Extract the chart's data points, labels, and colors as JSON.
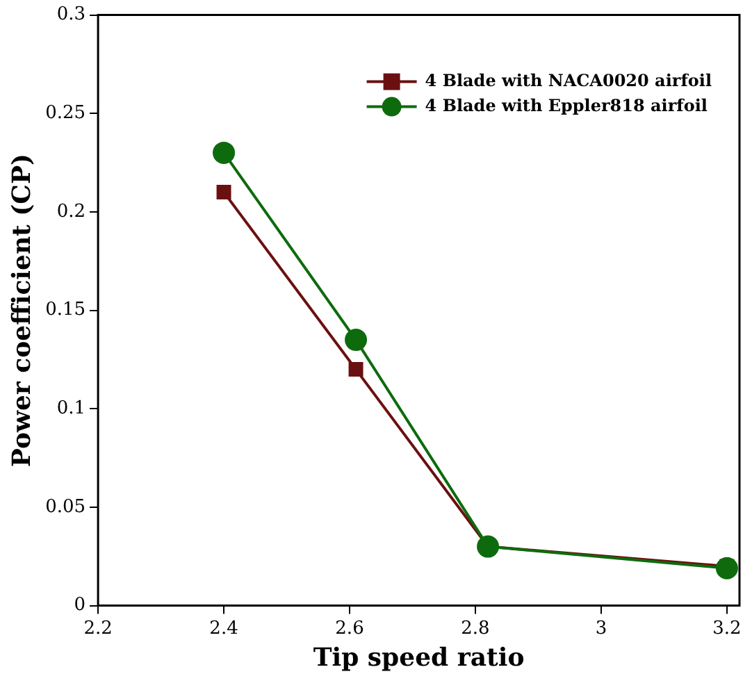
{
  "chart_data": {
    "type": "line",
    "xlabel": "Tip speed ratio",
    "ylabel": "Power coefficient (CP)",
    "x": [
      2.4,
      2.61,
      2.82,
      3.2
    ],
    "xlim": [
      2.2,
      3.22
    ],
    "xticks": [
      2.2,
      2.4,
      2.6,
      2.8,
      3,
      3.2
    ],
    "ylim": [
      0,
      0.3
    ],
    "yticks": [
      0,
      0.05,
      0.1,
      0.15,
      0.2,
      0.25,
      0.3
    ],
    "grid": false,
    "legend": "top right",
    "series": [
      {
        "name": "4 Blade with NACA0020 airfoil",
        "color": "#6b1010",
        "marker": "square",
        "values": [
          0.21,
          0.12,
          0.03,
          0.02
        ]
      },
      {
        "name": "4 Blade with Eppler818 airfoil",
        "color": "#0d6b0d",
        "marker": "circle",
        "values": [
          0.23,
          0.135,
          0.03,
          0.019
        ]
      }
    ]
  }
}
